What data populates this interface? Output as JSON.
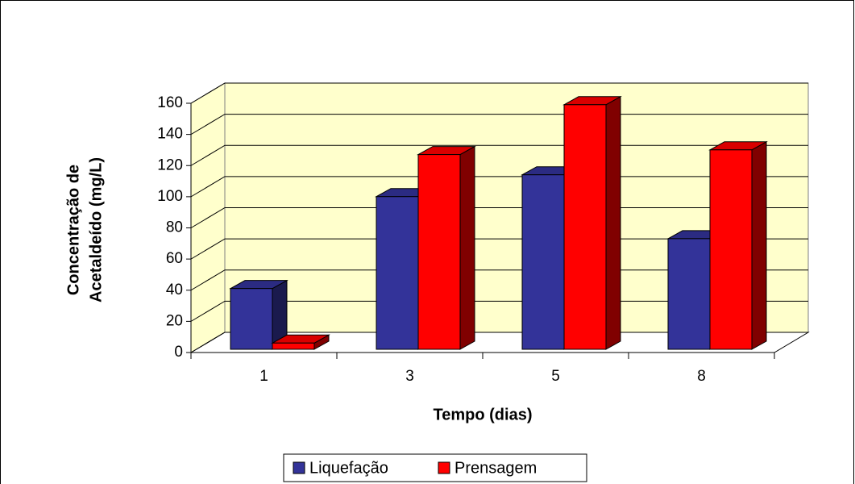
{
  "chart_data": {
    "type": "bar3d",
    "x_label": "Tempo (dias)",
    "y_label": [
      "Concentração de",
      "Acetaldeído (mg/L)"
    ],
    "categories": [
      "1",
      "3",
      "5",
      "8"
    ],
    "series": [
      {
        "name": "Liquefação",
        "color": "#333399",
        "values": [
          39,
          98,
          112,
          71
        ]
      },
      {
        "name": "Prensagem",
        "color": "#ff0000",
        "values": [
          4,
          125,
          157,
          128
        ]
      }
    ],
    "ylim": [
      0,
      160
    ],
    "yticks": [
      0,
      20,
      40,
      60,
      80,
      100,
      120,
      140,
      160
    ],
    "grid": true,
    "legend": "bottom"
  }
}
